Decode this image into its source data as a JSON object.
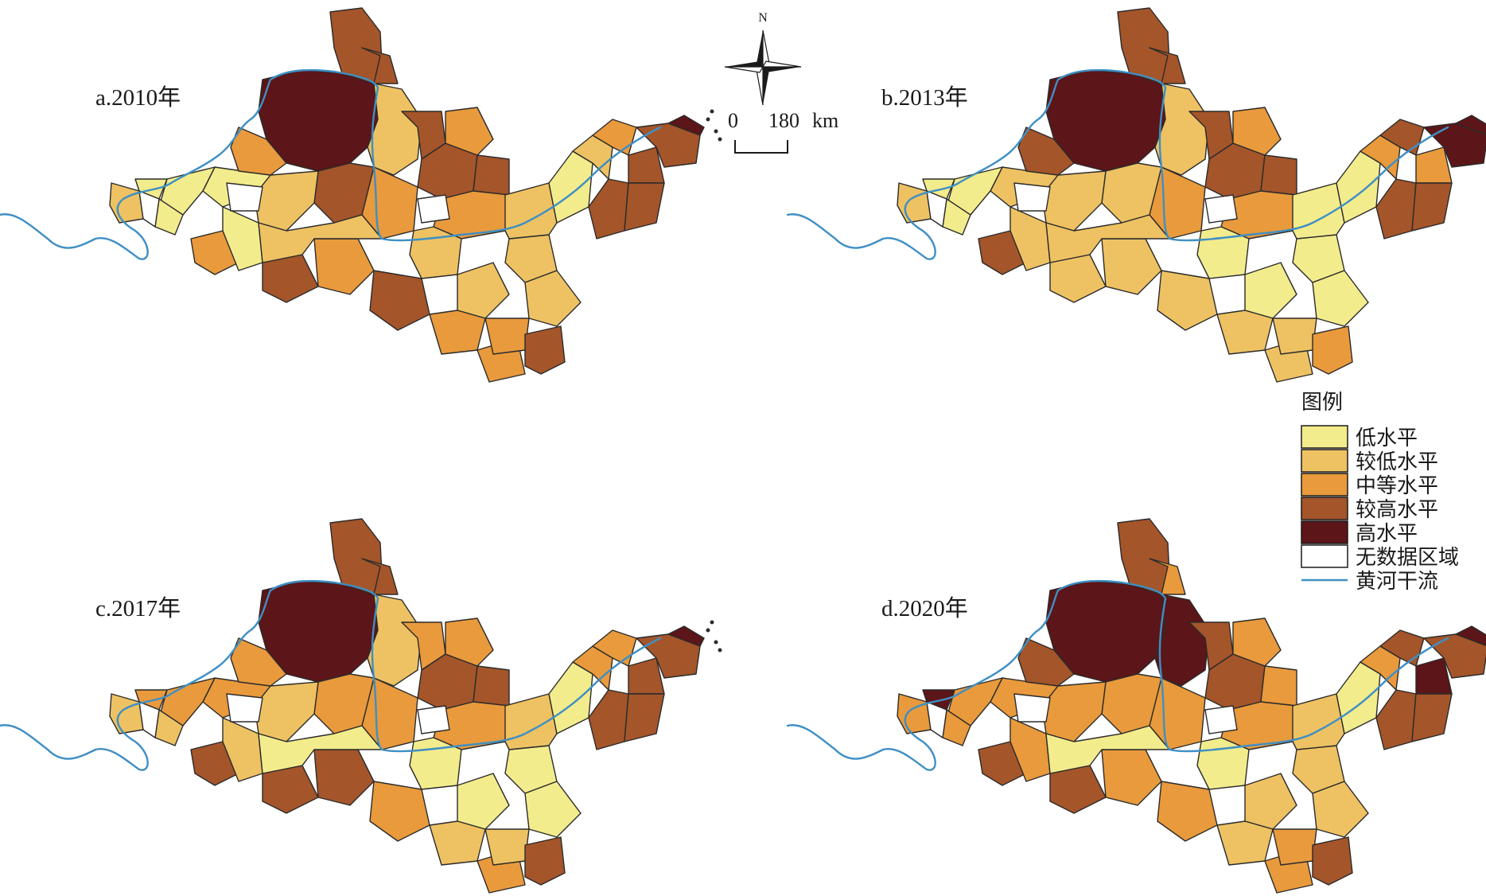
{
  "colors": {
    "low": "#f3ec8c",
    "lower": "#eec263",
    "medium": "#e99a3c",
    "higher": "#a4552a",
    "high": "#5c1518",
    "nodata": "#ffffff",
    "river": "#3f8fc4"
  },
  "panels": [
    {
      "id": "a",
      "label": "a.2010年"
    },
    {
      "id": "b",
      "label": "b.2013年"
    },
    {
      "id": "c",
      "label": "c.2017年"
    },
    {
      "id": "d",
      "label": "d.2020年"
    }
  ],
  "north_arrow": {
    "letter": "N"
  },
  "scale_bar": {
    "start": "0",
    "end": "180",
    "unit": "km"
  },
  "legend": {
    "title": "图例",
    "items": [
      {
        "key": "low",
        "label": "低水平"
      },
      {
        "key": "lower",
        "label": "较低水平"
      },
      {
        "key": "medium",
        "label": "中等水平"
      },
      {
        "key": "higher",
        "label": "较高水平"
      },
      {
        "key": "high",
        "label": "高水平"
      },
      {
        "key": "nodata",
        "label": "无数据区域"
      },
      {
        "key": "river",
        "label": "黄河干流"
      }
    ]
  }
}
